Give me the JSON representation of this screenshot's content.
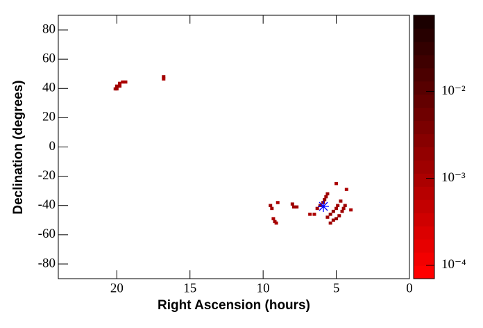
{
  "chart_data": {
    "type": "heatmap",
    "xlabel": "Right Ascension (hours)",
    "ylabel": "Declination (degrees)",
    "xlim": [
      24,
      0
    ],
    "xticks": [
      20,
      15,
      10,
      5,
      0
    ],
    "ylim": [
      -90,
      90
    ],
    "yticks": [
      -80,
      -60,
      -40,
      -20,
      0,
      20,
      40,
      60,
      80
    ],
    "zlim": [
      7e-05,
      0.075
    ],
    "zscale": "log",
    "zticks": [
      {
        "value": 0.0001,
        "label": "10⁻⁴"
      },
      {
        "value": 0.001,
        "label": "10⁻³"
      },
      {
        "value": 0.01,
        "label": "10⁻²"
      }
    ],
    "palette": [
      "#ff0000",
      "#f30000",
      "#e70000",
      "#db0000",
      "#cf0000",
      "#c30000",
      "#b70000",
      "#ab0000",
      "#9f0000",
      "#930000",
      "#870000",
      "#7b0000",
      "#6f0000",
      "#630000",
      "#570000",
      "#4b0000",
      "#3f0000",
      "#330000",
      "#270000",
      "#1b0000"
    ],
    "cells": {
      "x": [
        20.0,
        20.0,
        19.8,
        19.8,
        20.1,
        19.6,
        19.4,
        16.8,
        16.8,
        9.5,
        9.4,
        9.3,
        9.2,
        9.1,
        9.0,
        8.0,
        7.9,
        7.7,
        6.3,
        6.1,
        5.9,
        5.8,
        5.7,
        5.6,
        5.6,
        5.4,
        5.2,
        5.0,
        4.9,
        4.7,
        5.4,
        5.2,
        5.0,
        4.8,
        4.6,
        4.5,
        4.4,
        6.8,
        6.5,
        5.0,
        4.3,
        4.0
      ],
      "y": [
        41.6,
        39.7,
        41.6,
        43.5,
        39.7,
        44.4,
        44.4,
        48.0,
        46.5,
        -40,
        -42,
        -49,
        -51,
        -52,
        -38,
        -39,
        -41,
        -41,
        -42,
        -40,
        -38,
        -36,
        -34,
        -32,
        -48,
        -46,
        -44,
        -42,
        -40,
        -37,
        -52,
        -50,
        -49,
        -47,
        -44,
        -42,
        -40,
        -46,
        -46,
        -25,
        -29,
        -43
      ],
      "values": [
        0.0015,
        0.0012,
        0.0014,
        0.0011,
        0.0013,
        0.001,
        0.001,
        0.0012,
        0.001,
        0.0013,
        0.0012,
        0.0011,
        0.0013,
        0.0011,
        0.001,
        0.0014,
        0.0015,
        0.0012,
        0.0016,
        0.002,
        0.0022,
        0.0018,
        0.0016,
        0.0014,
        0.0015,
        0.0017,
        0.0018,
        0.0016,
        0.0015,
        0.0013,
        0.0014,
        0.0016,
        0.0017,
        0.0015,
        0.0014,
        0.0013,
        0.0012,
        0.0011,
        0.0011,
        0.001,
        0.001,
        0.001
      ]
    },
    "marker": {
      "x": 5.88,
      "y": -40.6,
      "color": "#0000ff"
    }
  }
}
